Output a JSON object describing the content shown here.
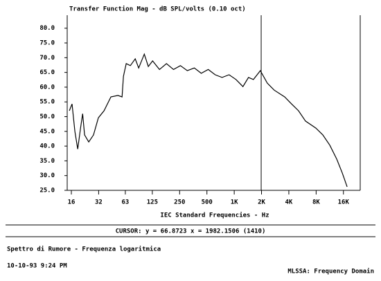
{
  "chart_data": {
    "type": "line",
    "title": "Transfer Function Mag - dB SPL/volts (0.10 oct)",
    "x_label": "IEC Standard Frequencies - Hz",
    "cursor_label": "CURSOR: y = 66.8723 x = 1982.1506 (1410)",
    "cursor_x": 1982.1506,
    "caption": "Spettro di Rumore - Frequenza logaritmica",
    "timestamp": "10-10-93 9:24 PM",
    "footer_right": "MLSSA: Frequency Domain",
    "x_scale": "log",
    "xlim": [
      14.4,
      24500
    ],
    "xticks": [
      16,
      32,
      63,
      125,
      250,
      500,
      {
        "value": 1000,
        "label": "1K"
      },
      {
        "value": 2000,
        "label": "2K"
      },
      {
        "value": 4000,
        "label": "4K"
      },
      {
        "value": 8000,
        "label": "8K"
      },
      {
        "value": 16000,
        "label": "16K"
      }
    ],
    "ylim": [
      25,
      84.4
    ],
    "yticks": [
      {
        "value": 25,
        "label": "25.0"
      },
      {
        "value": 30,
        "label": "30.0"
      },
      {
        "value": 35,
        "label": "35.0"
      },
      {
        "value": 40,
        "label": "40.0"
      },
      {
        "value": 45,
        "label": "45.0"
      },
      {
        "value": 50,
        "label": "50.0"
      },
      {
        "value": 55,
        "label": "55.0"
      },
      {
        "value": 60,
        "label": "60.0"
      },
      {
        "value": 65,
        "label": "65.0"
      },
      {
        "value": 70,
        "label": "70.0"
      },
      {
        "value": 75,
        "label": "75.0"
      },
      {
        "value": 80,
        "label": "80.0"
      }
    ],
    "color": "#000000",
    "x": [
      15.2,
      16.3,
      17.5,
      18.8,
      20.2,
      21.3,
      22.4,
      24.9,
      28.1,
      31.8,
      36.7,
      43.7,
      52.2,
      58.0,
      60.1,
      64.4,
      71.6,
      81.0,
      88.5,
      102,
      113,
      126,
      150,
      179,
      214,
      255,
      304,
      363,
      433,
      517,
      616,
      735,
      877,
      1046,
      1248,
      1437,
      1626,
      1939,
      2314,
      2759,
      3597,
      4288,
      5117,
      6101,
      7955,
      9485,
      11316,
      13494,
      15539,
      17583
    ],
    "values": [
      52,
      54.3,
      45,
      39,
      46,
      51,
      43.8,
      41.4,
      43.8,
      49.6,
      52,
      56.7,
      57.2,
      56.7,
      63.7,
      68,
      67.3,
      69.6,
      66.5,
      71.2,
      67,
      68.9,
      66,
      68,
      66,
      67.3,
      65.6,
      66.5,
      64.7,
      66,
      64.2,
      63.3,
      64.2,
      62.6,
      60.2,
      63.3,
      62.6,
      65.6,
      61.4,
      59,
      56.7,
      54.3,
      52,
      48.5,
      46.1,
      43.8,
      40.3,
      35.6,
      30.9,
      26.2
    ]
  }
}
